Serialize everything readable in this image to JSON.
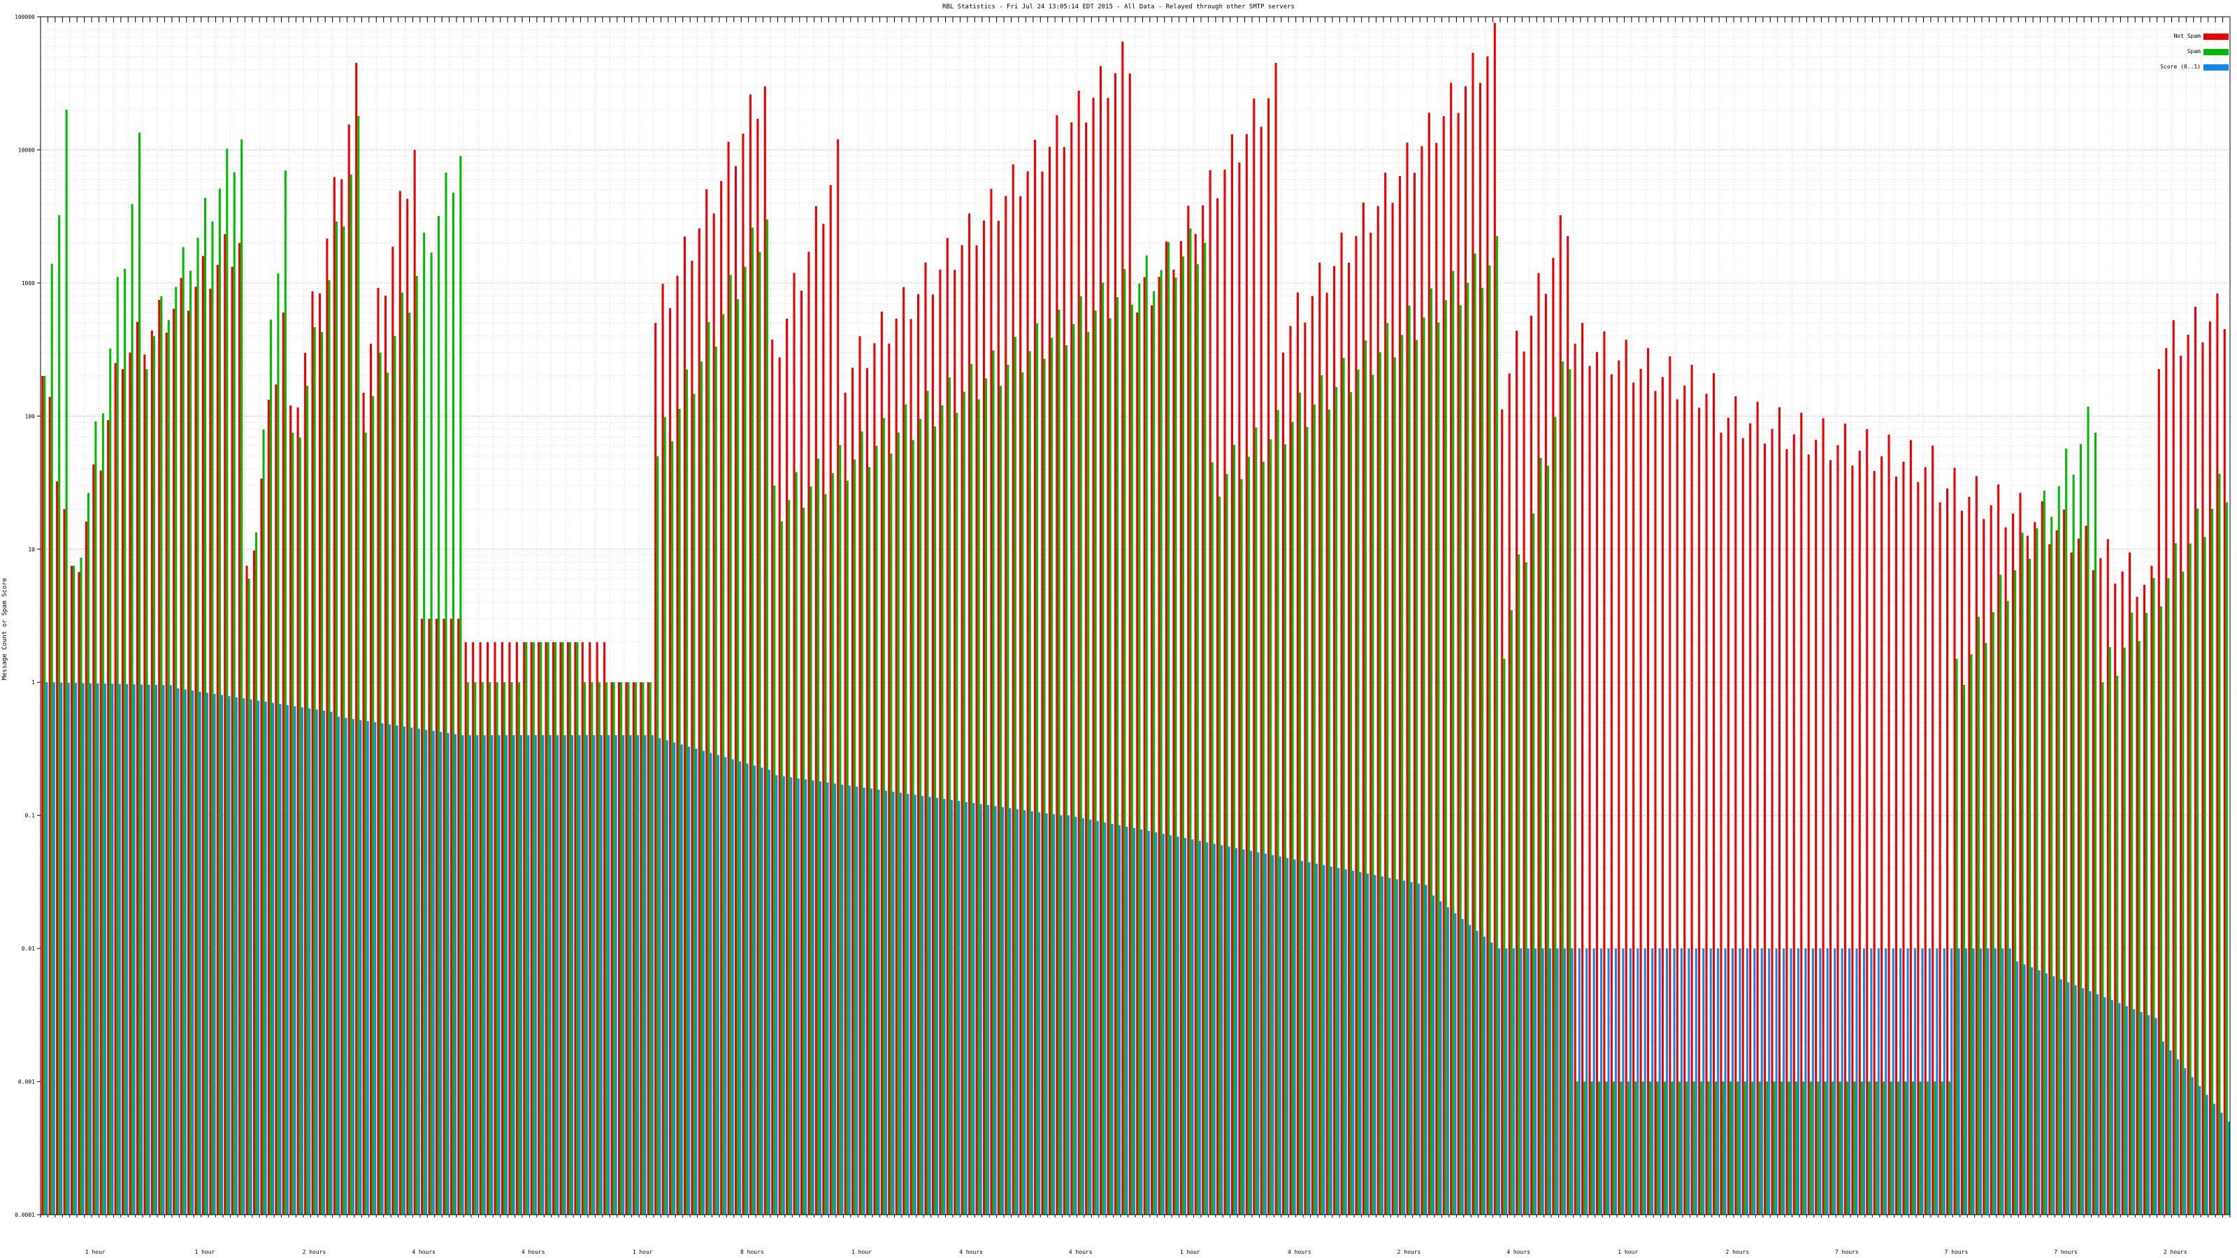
{
  "chart_data": {
    "type": "bar",
    "title": "RBL Statistics - Fri Jul 24 13:05:14 EDT 2015 - All Data - Relayed through other SMTP servers",
    "ylabel": "Message Count or Spam Score",
    "xlabel": "",
    "y_scale": "log",
    "ylim": [
      0.0001,
      100000
    ],
    "y_ticks": [
      "0.0001",
      "0.001",
      "0.01",
      "0.1",
      "1",
      "10",
      "100",
      "1000",
      "10000",
      "100000"
    ],
    "grid": true,
    "legend": "top-right",
    "n_categories": 300,
    "x_group_labels": [
      "1 hour",
      "1 hour",
      "2 hours",
      "4 hours",
      "4 hours",
      "1 hour",
      "8 hours",
      "1 hour",
      "4 hours",
      "4 hours",
      "1 hour",
      "4 hours",
      "2 hours",
      "4 hours",
      "1 hour",
      "2 hours",
      "7 hours",
      "7 hours",
      "7 hours",
      "2 hours"
    ],
    "series": [
      {
        "name": "Not Spam",
        "color": "#ee0000",
        "segments": [
          [
            0,
            4,
            [
              200,
              20
            ]
          ],
          [
            4,
            12,
            [
              5,
              300
            ]
          ],
          [
            12,
            28,
            [
              300,
              2000
            ]
          ],
          [
            28,
            34,
            [
              5,
              600
            ]
          ],
          [
            34,
            44,
            [
              80,
              30000
            ]
          ],
          [
            44,
            52,
            [
              200,
              10000
            ]
          ],
          [
            52,
            58,
            [
              3,
              3
            ]
          ],
          [
            58,
            78,
            [
              2,
              2
            ]
          ],
          [
            78,
            84,
            [
              1,
              1
            ]
          ],
          [
            84,
            100,
            [
              500,
              30000
            ]
          ],
          [
            100,
            110,
            [
              250,
              8000
            ]
          ],
          [
            110,
            150,
            [
              200,
              50000
            ]
          ],
          [
            150,
            170,
            [
              600,
              30000
            ]
          ],
          [
            170,
            200,
            [
              400,
              60000
            ]
          ],
          [
            200,
            210,
            [
              150,
              3000
            ]
          ],
          [
            210,
            230,
            [
              350,
              140
            ]
          ],
          [
            230,
            260,
            [
              100,
              40
            ]
          ],
          [
            260,
            280,
            [
              30,
              12
            ]
          ],
          [
            280,
            290,
            [
              10,
              5
            ]
          ],
          [
            290,
            300,
            [
              300,
              600
            ]
          ]
        ]
      },
      {
        "name": "Spam",
        "color": "#00bb00",
        "segments": [
          [
            0,
            4,
            [
              200,
              20000
            ]
          ],
          [
            4,
            14,
            [
              5,
              9000
            ]
          ],
          [
            14,
            28,
            [
              300,
              12000
            ]
          ],
          [
            28,
            34,
            [
              4,
              7000
            ]
          ],
          [
            34,
            44,
            [
              50,
              12000
            ]
          ],
          [
            44,
            58,
            [
              100,
              9000
            ]
          ],
          [
            58,
            66,
            [
              1,
              1
            ]
          ],
          [
            66,
            74,
            [
              2,
              2
            ]
          ],
          [
            74,
            84,
            [
              1,
              1
            ]
          ],
          [
            84,
            100,
            [
              50,
              3000
            ]
          ],
          [
            100,
            160,
            [
              20,
              2000
            ]
          ],
          [
            160,
            200,
            [
              30,
              1500
            ]
          ],
          [
            200,
            210,
            [
              2,
              300
            ]
          ],
          [
            210,
            262,
            [
              0.001,
              0.001
            ]
          ],
          [
            262,
            282,
            [
              1,
              100
            ]
          ],
          [
            282,
            300,
            [
              1,
              30
            ]
          ]
        ]
      },
      {
        "name": "Score (0..1)",
        "color": "#1188ee",
        "segments": [
          [
            0,
            18,
            [
              1,
              0.95
            ]
          ],
          [
            18,
            40,
            [
              0.9,
              0.6
            ]
          ],
          [
            40,
            58,
            [
              0.55,
              0.4
            ]
          ],
          [
            58,
            84,
            [
              0.4,
              0.4
            ]
          ],
          [
            84,
            100,
            [
              0.38,
              0.22
            ]
          ],
          [
            100,
            140,
            [
              0.2,
              0.1
            ]
          ],
          [
            140,
            190,
            [
              0.1,
              0.03
            ]
          ],
          [
            190,
            200,
            [
              0.025,
              0.01
            ]
          ],
          [
            200,
            270,
            [
              0.01,
              0.01
            ]
          ],
          [
            270,
            290,
            [
              0.008,
              0.003
            ]
          ],
          [
            290,
            300,
            [
              0.002,
              0.0005
            ]
          ]
        ]
      }
    ]
  }
}
